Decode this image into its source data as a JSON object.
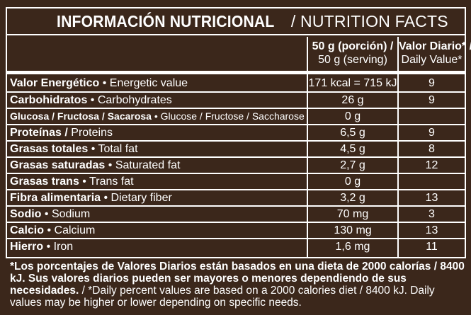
{
  "title": {
    "es": "INFORMACIÓN NUTRICIONAL",
    "en": "/ NUTRITION FACTS"
  },
  "header": {
    "serving_es": "50 g (porción) /",
    "serving_en": "50 g (serving)",
    "dv_es": "Valor Diario* /",
    "dv_en": "Daily Value*"
  },
  "rows": [
    {
      "es": "Valor Energético",
      "en": "• Energetic value",
      "value": "171 kcal = 715 kJ",
      "dv": "9"
    },
    {
      "es": "Carbohidratos",
      "en": "• Carbohydrates",
      "value": "26 g",
      "dv": "9"
    },
    {
      "es": "Glucosa / Fructosa / Sacarosa",
      "en": "• Glucose / Fructose / Saccharose",
      "value": "0 g",
      "dv": ""
    },
    {
      "es": "Proteínas /",
      "en": "Proteins",
      "value": "6,5 g",
      "dv": "9"
    },
    {
      "es": "Grasas totales",
      "en": "• Total fat",
      "value": "4,5 g",
      "dv": "8"
    },
    {
      "es": "Grasas saturadas",
      "en": "• Saturated fat",
      "value": "2,7 g",
      "dv": "12"
    },
    {
      "es": "Grasas trans",
      "en": "• Trans fat",
      "value": "0 g",
      "dv": ""
    },
    {
      "es": "Fibra alimentaria",
      "en": "• Dietary fiber",
      "value": "3,2 g",
      "dv": "13"
    },
    {
      "es": "Sodio",
      "en": "• Sodium",
      "value": "70 mg",
      "dv": "3"
    },
    {
      "es": "Calcio",
      "en": "• Calcium",
      "value": "130 mg",
      "dv": "13"
    },
    {
      "es": "Hierro",
      "en": "• Iron",
      "value": "1,6 mg",
      "dv": "11"
    }
  ],
  "footnote": {
    "es": "*Los porcentajes de Valores Diarios están basados en una dieta de 2000 calorías / 8400 kJ. Sus valores diarios pueden ser mayores o menores dependiendo de sus necesidades.",
    "en": " / *Daily percent values are based on a 2000 calories diet / 8400 kJ. Daily values may be higher or lower depending on specific needs."
  }
}
